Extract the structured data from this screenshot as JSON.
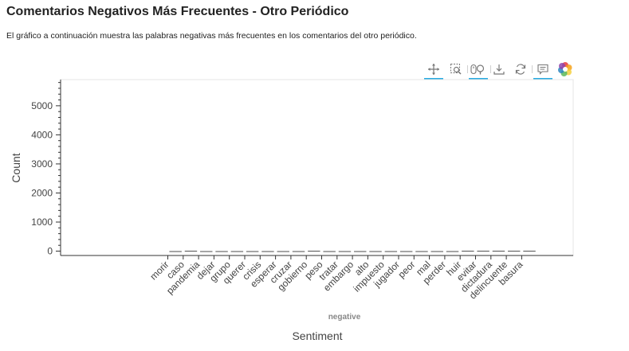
{
  "page": {
    "title": "Comentarios Negativos Más Frecuentes - Otro Periódico",
    "description": "El gráfico a continuación muestra las palabras negativas más frecuentes en los comentarios del otro periódico."
  },
  "toolbar": {
    "tools": [
      {
        "name": "pan-tool",
        "icon": "pan-icon",
        "active": true
      },
      {
        "name": "box-zoom-tool",
        "icon": "box-zoom-icon",
        "active": false
      },
      {
        "name": "wheel-zoom-tool",
        "icon": "wheel-zoom-icon",
        "active": true
      },
      {
        "name": "save-tool",
        "icon": "save-icon",
        "active": false
      },
      {
        "name": "reset-tool",
        "icon": "reset-icon",
        "active": false
      },
      {
        "name": "hover-tool",
        "icon": "hover-icon",
        "active": true
      },
      {
        "name": "bokeh-logo",
        "icon": "bokeh-logo-icon",
        "active": false
      }
    ]
  },
  "chart_data": {
    "type": "bar",
    "title": "",
    "xlabel": "Sentiment",
    "ylabel": "Count",
    "group_label": "negative",
    "categories": [
      "morir",
      "caso",
      "pandemia",
      "dejar",
      "grupo",
      "querer",
      "crisis",
      "esperar",
      "cruzar",
      "gobierno",
      "peso",
      "tratar",
      "embargo",
      "alto",
      "impuesto",
      "jugador",
      "peor",
      "mal",
      "perder",
      "huir",
      "evitar",
      "dictadura",
      "delincuente",
      "basura"
    ],
    "values": [
      0,
      12,
      0,
      0,
      0,
      0,
      0,
      0,
      0,
      12,
      0,
      0,
      0,
      0,
      0,
      0,
      0,
      0,
      0,
      12,
      12,
      12,
      12,
      12
    ],
    "yticks": [
      0,
      1000,
      2000,
      3000,
      4000,
      5000
    ],
    "ylim": [
      -150,
      5900
    ],
    "grid": false,
    "bar_color": "#4c4c4c"
  }
}
